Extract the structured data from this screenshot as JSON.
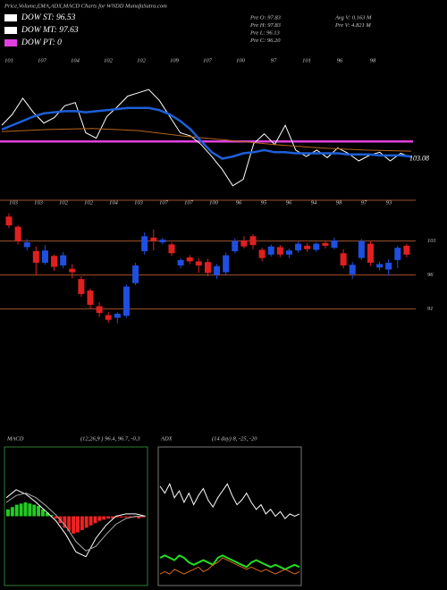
{
  "header": {
    "title": "Price,Volume,EMA,ADX,MACD Charts for WNDD MunafaSutra.com",
    "legend": [
      {
        "text": "DOW ST: 96.53",
        "color": "#ffffff"
      },
      {
        "text": "DOW MT: 97.63",
        "color": "#ffffff"
      },
      {
        "text": "DOW PT: 0",
        "color": "#e040e0"
      }
    ],
    "stats_left": [
      "Pre  O: 97.83",
      "Pre  H: 97.83",
      "Pre  L: 96.13",
      "Pre  C: 96.20"
    ],
    "stats_right": [
      "Avg V: 0.163 M",
      "Pre  V: 4.821 M"
    ]
  },
  "chart_data": [
    {
      "type": "line",
      "ylim": [
        100,
        112
      ],
      "last_label": 103.08,
      "top_labels": [
        "101",
        "107",
        "104",
        "102",
        "102",
        "109",
        "107",
        "100",
        "97",
        "101",
        "96",
        "98"
      ],
      "hline": {
        "value": 104.7,
        "color": "#e040e0"
      },
      "series": [
        {
          "color": "#ffffff",
          "width": 1,
          "values": [
            106.2,
            107.2,
            108.7,
            107.4,
            106.4,
            106.9,
            108.0,
            108.3,
            105.5,
            105.0,
            107.0,
            107.9,
            108.9,
            109.2,
            109.5,
            108.5,
            107.0,
            105.5,
            105.2,
            104.4,
            103.3,
            102.1,
            100.6,
            101.2,
            104.5,
            105.4,
            104.4,
            106.2,
            103.9,
            103.3,
            103.9,
            103.2,
            104.1,
            103.6,
            102.9,
            103.4,
            103.7,
            102.9,
            103.6,
            103.2
          ]
        },
        {
          "color": "#b5651d",
          "width": 1,
          "values": [
            105.6,
            105.8,
            105.9,
            105.7,
            105.2,
            104.8,
            104.4,
            104.1,
            103.9,
            103.8
          ]
        },
        {
          "color": "#1e5fd8",
          "width": 2.5,
          "values": [
            105.8,
            106.2,
            106.6,
            107.0,
            107.3,
            107.4,
            107.5,
            107.5,
            107.4,
            107.5,
            107.6,
            107.7,
            107.8,
            107.8,
            107.8,
            107.6,
            107.2,
            106.6,
            105.8,
            104.7,
            103.7,
            103.1,
            103.3,
            103.6,
            103.7,
            103.9,
            103.7,
            103.7,
            103.6,
            103.6,
            103.6,
            103.6,
            103.6,
            103.5,
            103.5,
            103.5,
            103.4,
            103.4,
            103.4,
            103.3
          ]
        }
      ]
    },
    {
      "type": "candlestick",
      "ylim": [
        72,
        107
      ],
      "yticks": [
        101,
        96,
        91
      ],
      "up_color": "#1f4fe0",
      "down_color": "#e02020",
      "labels": [
        "103",
        "103",
        "102",
        "102",
        "104",
        "103",
        "107",
        "107",
        "100",
        "96",
        "95",
        "96",
        "94",
        "98",
        "97",
        "93"
      ],
      "open": [
        104.6,
        103.1,
        100.1,
        99.5,
        97.8,
        98.8,
        97.4,
        96.9,
        95.4,
        93.7,
        91.4,
        90.1,
        89.7,
        90.0,
        94.8,
        99.5,
        101.5,
        100.8,
        100.5,
        97.4,
        98.6,
        98.0,
        97.9,
        96.0,
        96.4,
        99.5,
        101.1,
        101.7,
        99.7,
        99.0,
        100.1,
        99.0,
        99.6,
        100.3,
        99.7,
        100.7,
        100.0,
        99.2,
        96.1,
        98.5,
        100.6,
        97.1,
        96.8,
        98.2,
        100.3
      ],
      "high": [
        105.1,
        103.3,
        101.3,
        100.2,
        100.4,
        99.0,
        99.4,
        97.6,
        95.8,
        94.0,
        92.0,
        90.6,
        90.5,
        94.6,
        97.8,
        102.3,
        102.7,
        101.5,
        100.8,
        98.5,
        98.9,
        98.5,
        98.4,
        97.6,
        99.3,
        101.4,
        101.7,
        102.0,
        100.0,
        100.5,
        100.4,
        99.9,
        100.9,
        100.7,
        100.8,
        101.0,
        101.5,
        99.8,
        97.9,
        101.3,
        101.0,
        98.0,
        98.3,
        100.3,
        100.6
      ],
      "low": [
        102.9,
        100.5,
        99.6,
        96.0,
        97.5,
        96.6,
        97.0,
        95.5,
        92.8,
        91.0,
        89.8,
        89.0,
        88.9,
        89.7,
        94.5,
        99.0,
        99.6,
        100.5,
        98.8,
        97.0,
        97.6,
        96.3,
        95.8,
        95.4,
        96.0,
        99.2,
        99.9,
        99.8,
        98.0,
        98.7,
        98.6,
        98.5,
        99.3,
        99.4,
        99.4,
        99.9,
        99.8,
        97.0,
        95.4,
        98.2,
        97.3,
        96.7,
        95.9,
        97.0,
        98.6
      ],
      "close": [
        103.3,
        101.0,
        100.8,
        97.8,
        99.6,
        97.2,
        98.9,
        96.4,
        93.2,
        91.6,
        90.4,
        89.4,
        90.3,
        94.3,
        97.4,
        101.7,
        101.0,
        101.2,
        99.2,
        98.2,
        98.0,
        97.4,
        96.3,
        97.3,
        98.9,
        101.0,
        100.2,
        100.4,
        98.5,
        100.2,
        99.0,
        99.6,
        100.6,
        99.8,
        100.6,
        100.3,
        101.1,
        97.4,
        97.5,
        101.0,
        97.8,
        97.6,
        97.8,
        100.0,
        99.0
      ]
    },
    {
      "type": "macd",
      "label": "MACD",
      "params": "(12,26,9 ) 96.4, 96.7, -0.3",
      "ylim": [
        -6,
        6
      ],
      "pos_color": "#22cc22",
      "neg_color": "#ee2222",
      "histogram": [
        0.6,
        0.8,
        1.0,
        1.1,
        1.2,
        1.1,
        1.0,
        0.9,
        0.6,
        0.3,
        0.1,
        -0.2,
        -0.6,
        -1.0,
        -1.3,
        -1.5,
        -1.4,
        -1.2,
        -1.0,
        -0.8,
        -0.6,
        -0.4,
        -0.3,
        -0.2,
        -0.2,
        -0.1,
        -0.1,
        -0.1,
        -0.1,
        -0.1,
        -0.2,
        -0.1
      ],
      "series": [
        {
          "color": "#ffffff",
          "width": 1,
          "values": [
            1.6,
            2.3,
            1.9,
            1.2,
            0.4,
            -0.4,
            -1.6,
            -3.1,
            -3.5,
            -1.9,
            -0.8,
            0,
            0.2,
            0.2,
            0
          ]
        },
        {
          "color": "#aaaaaa",
          "width": 1,
          "values": [
            1.2,
            1.8,
            2.0,
            1.6,
            0.9,
            0.1,
            -0.9,
            -2.2,
            -3.0,
            -2.6,
            -1.6,
            -0.7,
            -0.2,
            0,
            0
          ]
        }
      ]
    },
    {
      "type": "line",
      "label": "ADX",
      "params": "(14  day) 8, -25, -20",
      "ylim": [
        0,
        60
      ],
      "series": [
        {
          "color": "#ffffff",
          "width": 1,
          "values": [
            43,
            40,
            44,
            38,
            41,
            36,
            40,
            35,
            39,
            42,
            37,
            34,
            38,
            41,
            44,
            39,
            35,
            37,
            40,
            36,
            33,
            35,
            31,
            33,
            30,
            32,
            29,
            31,
            30,
            31
          ]
        },
        {
          "color": "#22dd22",
          "width": 2,
          "values": [
            12,
            13,
            12,
            11,
            13,
            12,
            10,
            9,
            10,
            11,
            10,
            9,
            12,
            13,
            12,
            11,
            10,
            9,
            8,
            10,
            11,
            10,
            9,
            8,
            9,
            8,
            7,
            8,
            9,
            8
          ]
        },
        {
          "color": "#d2691e",
          "width": 1,
          "values": [
            5,
            6,
            5,
            7,
            6,
            5,
            6,
            7,
            8,
            6,
            7,
            9,
            10,
            12,
            11,
            10,
            9,
            8,
            7,
            8,
            7,
            6,
            7,
            6,
            5,
            6,
            7,
            6,
            5,
            6
          ]
        }
      ]
    }
  ]
}
